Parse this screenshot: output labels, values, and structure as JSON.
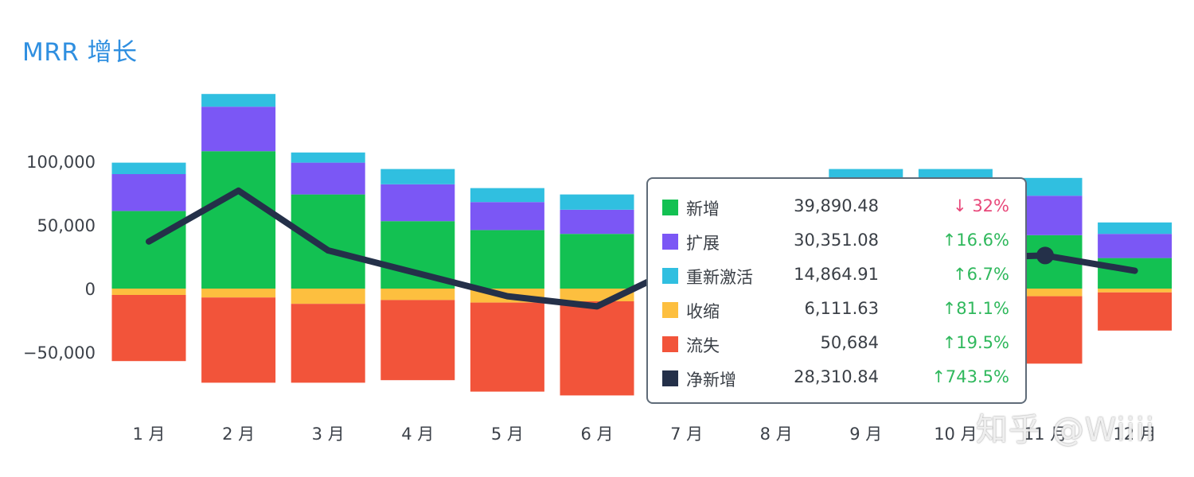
{
  "title": "MRR 增长",
  "chart_data": {
    "type": "bar",
    "categories": [
      "1 月",
      "2 月",
      "3 月",
      "4 月",
      "5 月",
      "6 月",
      "7 月",
      "8 月",
      "9 月",
      "10 月",
      "11 月",
      "12 月"
    ],
    "y_ticks": [
      "100,000",
      "50,000",
      "0",
      "−50,000"
    ],
    "y_tick_values": [
      100000,
      50000,
      0,
      -50000
    ],
    "ylim": [
      -90000,
      150000
    ],
    "stacked": true,
    "series": [
      {
        "name": "新增",
        "color": "#13c152",
        "values": [
          61000,
          108000,
          74000,
          53000,
          46000,
          43000,
          20000,
          20000,
          58000,
          58000,
          42000,
          24000
        ]
      },
      {
        "name": "扩展",
        "color": "#7b57f5",
        "values": [
          29000,
          35000,
          25000,
          29000,
          22000,
          19000,
          15000,
          15000,
          22000,
          22000,
          31000,
          19000
        ]
      },
      {
        "name": "重新激活",
        "color": "#30bfe0",
        "values": [
          9000,
          10000,
          8000,
          12000,
          11000,
          12000,
          6000,
          6000,
          14000,
          14000,
          14000,
          9000
        ]
      },
      {
        "name": "收缩",
        "color": "#fdbf3f",
        "values": [
          -5000,
          -7000,
          -12000,
          -9000,
          -11000,
          -10000,
          -6000,
          -6000,
          -6000,
          -6000,
          -6000,
          -3000
        ]
      },
      {
        "name": "流失",
        "color": "#f2543a",
        "values": [
          -52000,
          -67000,
          -62000,
          -63000,
          -70000,
          -74000,
          -50000,
          -50000,
          -55000,
          -55000,
          -53000,
          -30000
        ]
      },
      {
        "name": "净新增",
        "type": "line",
        "color": "#243049",
        "values": [
          37000,
          77000,
          30000,
          12000,
          -6000,
          -14000,
          20000,
          20000,
          24000,
          24000,
          26000,
          14000
        ]
      }
    ],
    "highlight_point_index": 10,
    "tooltip": {
      "rows": [
        {
          "label": "新增",
          "value": "39,890.48",
          "change": "↓ 32%",
          "direction": "down",
          "color": "#13c152"
        },
        {
          "label": "扩展",
          "value": "30,351.08",
          "change": "↑16.6%",
          "direction": "up",
          "color": "#7b57f5"
        },
        {
          "label": "重新激活",
          "value": "14,864.91",
          "change": "↑6.7%",
          "direction": "up",
          "color": "#30bfe0"
        },
        {
          "label": "收缩",
          "value": "6,111.63",
          "change": "↑81.1%",
          "direction": "up",
          "color": "#fdbf3f"
        },
        {
          "label": "流失",
          "value": "50,684",
          "change": "↑19.5%",
          "direction": "up",
          "color": "#f2543a"
        },
        {
          "label": "净新增",
          "value": "28,310.84",
          "change": "↑743.5%",
          "direction": "up",
          "color": "#243049"
        }
      ]
    }
  },
  "colors": {
    "up": "#2fb85c",
    "down": "#e8487a",
    "title": "#2f8fe0"
  },
  "watermark": "知乎 @Wiiii"
}
